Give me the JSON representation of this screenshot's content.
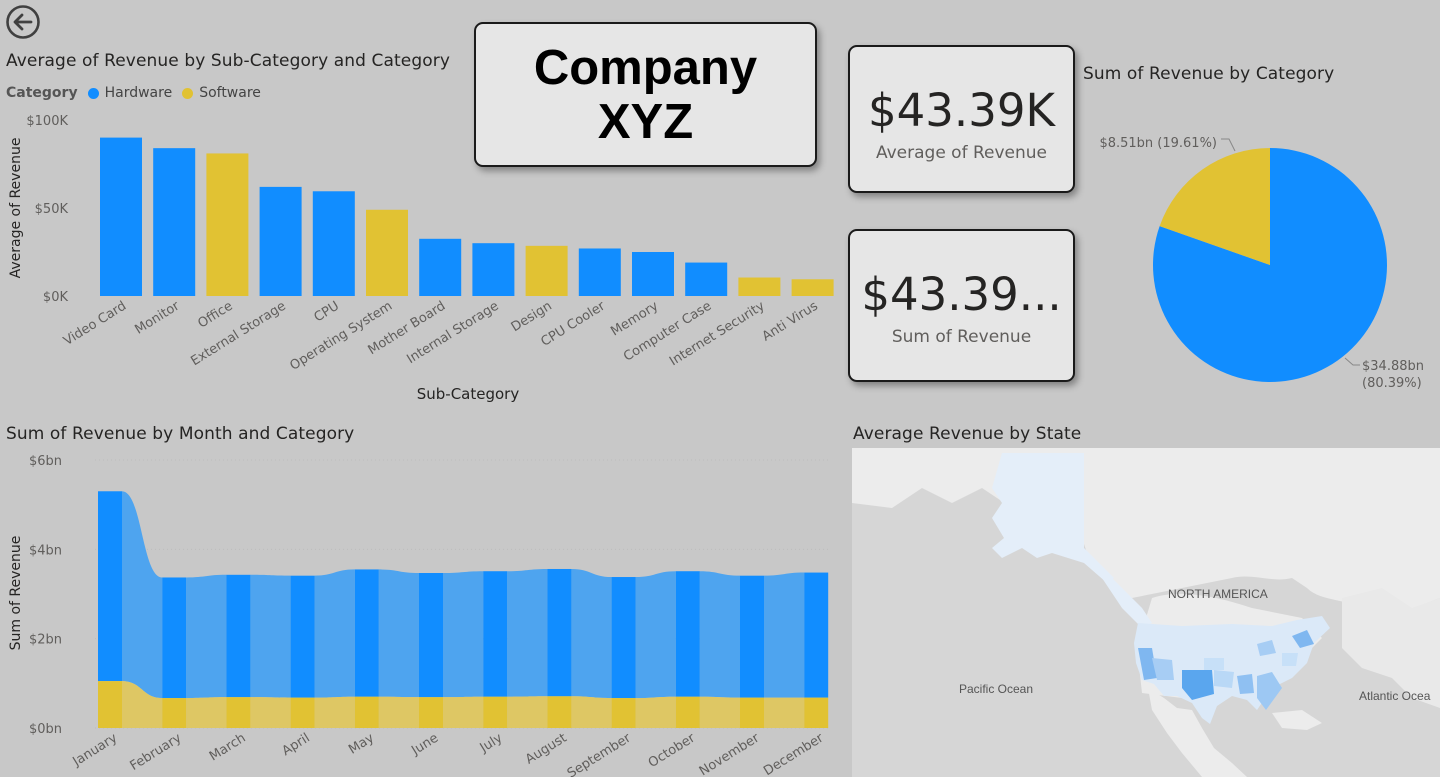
{
  "back": {
    "icon": "back-arrow-icon"
  },
  "colors": {
    "hardware": "#118dff",
    "software": "#e1c233",
    "background": "#c8c8c8"
  },
  "bar_visual": {
    "title": "Average of Revenue by Sub-Category and Category"
  },
  "legend": {
    "title": "Category",
    "hardware": "Hardware",
    "software": "Software"
  },
  "company": {
    "name": "Company XYZ"
  },
  "kpi1": {
    "value": "$43.39K",
    "label": "Average of Revenue"
  },
  "kpi2": {
    "value": "$43.39...",
    "label": "Sum of Revenue"
  },
  "pie_visual": {
    "title": "Sum of Revenue by Category"
  },
  "area_visual": {
    "title": "Sum of Revenue by Month and Category"
  },
  "map_visual": {
    "title": "Average Revenue by State",
    "labels": {
      "north_america": "NORTH AMERICA",
      "pacific": "Pacific Ocean",
      "atlantic": "Atlantic Ocea"
    }
  },
  "chart_data": [
    {
      "type": "bar",
      "title": "Average of Revenue by Sub-Category and Category",
      "xlabel": "Sub-Category",
      "ylabel": "Average of Revenue",
      "ylim": [
        0,
        100000
      ],
      "yticks": [
        "$0K",
        "$50K",
        "$100K"
      ],
      "categories": [
        "Video Card",
        "Monitor",
        "Office",
        "External Storage",
        "CPU",
        "Operating System",
        "Mother Board",
        "Internal Storage",
        "Design",
        "CPU Cooler",
        "Memory",
        "Computer Case",
        "Internet Security",
        "Anti Virus"
      ],
      "category_group": [
        "Hardware",
        "Hardware",
        "Software",
        "Hardware",
        "Hardware",
        "Software",
        "Hardware",
        "Hardware",
        "Software",
        "Hardware",
        "Hardware",
        "Hardware",
        "Software",
        "Software"
      ],
      "values": [
        90000,
        84000,
        81000,
        62000,
        59500,
        49000,
        32500,
        30000,
        28500,
        27000,
        25000,
        19000,
        10500,
        9500
      ],
      "legend": {
        "title": "Category",
        "entries": [
          "Hardware",
          "Software"
        ],
        "position": "top-left"
      }
    },
    {
      "type": "pie",
      "title": "Sum of Revenue by Category",
      "slices": [
        {
          "name": "Hardware",
          "value": 34.88,
          "label": "$34.88bn",
          "pct_label": "(80.39%)"
        },
        {
          "name": "Software",
          "value": 8.51,
          "label": "$8.51bn (19.61%)"
        }
      ]
    },
    {
      "type": "area",
      "title": "Sum of Revenue by Month and Category",
      "ylabel": "Sum of Revenue",
      "ylim": [
        0,
        6
      ],
      "yticks": [
        "$0bn",
        "$2bn",
        "$4bn",
        "$6bn"
      ],
      "categories": [
        "January",
        "February",
        "March",
        "April",
        "May",
        "June",
        "July",
        "August",
        "September",
        "October",
        "November",
        "December"
      ],
      "series": [
        {
          "name": "Software",
          "values": [
            1.05,
            0.67,
            0.69,
            0.68,
            0.7,
            0.69,
            0.7,
            0.71,
            0.67,
            0.7,
            0.68,
            0.68
          ]
        },
        {
          "name": "Hardware",
          "values": [
            4.25,
            2.7,
            2.74,
            2.73,
            2.85,
            2.78,
            2.81,
            2.85,
            2.71,
            2.81,
            2.73,
            2.8
          ]
        }
      ]
    }
  ]
}
